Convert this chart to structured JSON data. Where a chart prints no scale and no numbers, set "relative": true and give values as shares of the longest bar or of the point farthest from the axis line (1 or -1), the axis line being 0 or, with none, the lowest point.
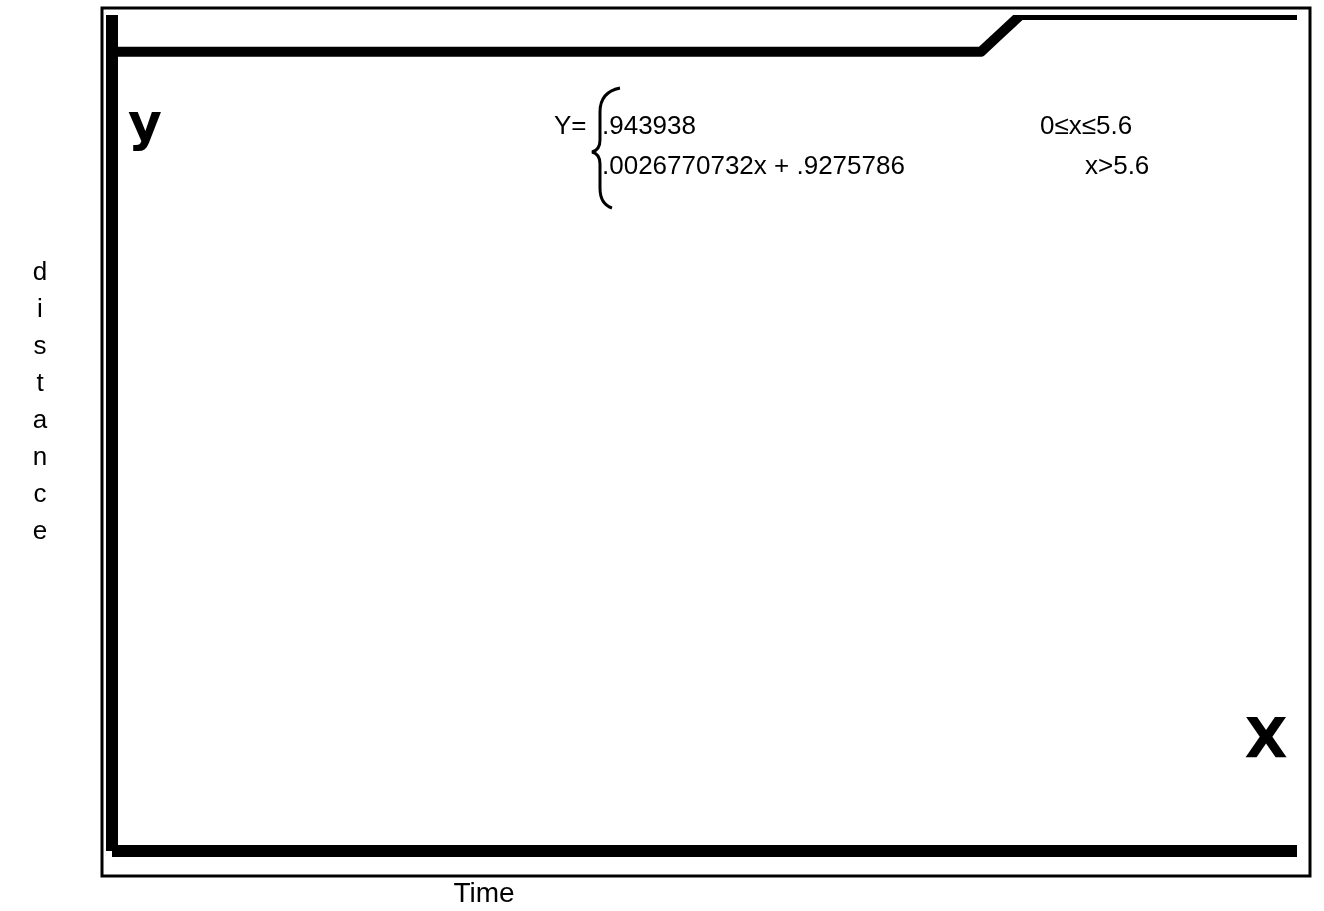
{
  "chart_data": {
    "type": "line",
    "relative": true,
    "xlabel": "Time",
    "ylabel": "distance",
    "categories": [
      null,
      null,
      null,
      null,
      null,
      null,
      null,
      null,
      null,
      null,
      null,
      null,
      null,
      null,
      null,
      null,
      null,
      null,
      null,
      null,
      null,
      null,
      null,
      null,
      null,
      null,
      null,
      null,
      null,
      null,
      null,
      null,
      null,
      null,
      null,
      null,
      null,
      null,
      null,
      null,
      null,
      null,
      null,
      null,
      null,
      null,
      null,
      null,
      null,
      null,
      null,
      null,
      null,
      null,
      null,
      null,
      null,
      null,
      null,
      null,
      null
    ],
    "series": [
      {
        "color": "#000000",
        "values": [
          0.956,
          0.956,
          0.956,
          0.956,
          0.956,
          0.956,
          0.956,
          0.956,
          0.956,
          0.956,
          0.956,
          0.956,
          0.956,
          0.956,
          0.956,
          0.956,
          0.956,
          0.956,
          0.956,
          0.956,
          0.956,
          0.956,
          0.956,
          0.956,
          0.956,
          0.956,
          0.956,
          0.956,
          0.956,
          0.956,
          0.956,
          0.956,
          0.956,
          0.956,
          0.956,
          0.956,
          0.956,
          0.956,
          0.956,
          0.956,
          0.956,
          0.956,
          0.956,
          0.956,
          0.956,
          0.978,
          1,
          1,
          1,
          1,
          1,
          1,
          1,
          1,
          1,
          1,
          1,
          1,
          1,
          1,
          1
        ]
      }
    ],
    "annotations": [
      "y",
      "Y=",
      ".943938",
      "0≤x≤5.6",
      ".0026770732x + .9275786",
      "x>5.6",
      "X"
    ],
    "grid": false,
    "legend": false,
    "marker": "none",
    "line_style": "solid",
    "tick_labels": false
  }
}
